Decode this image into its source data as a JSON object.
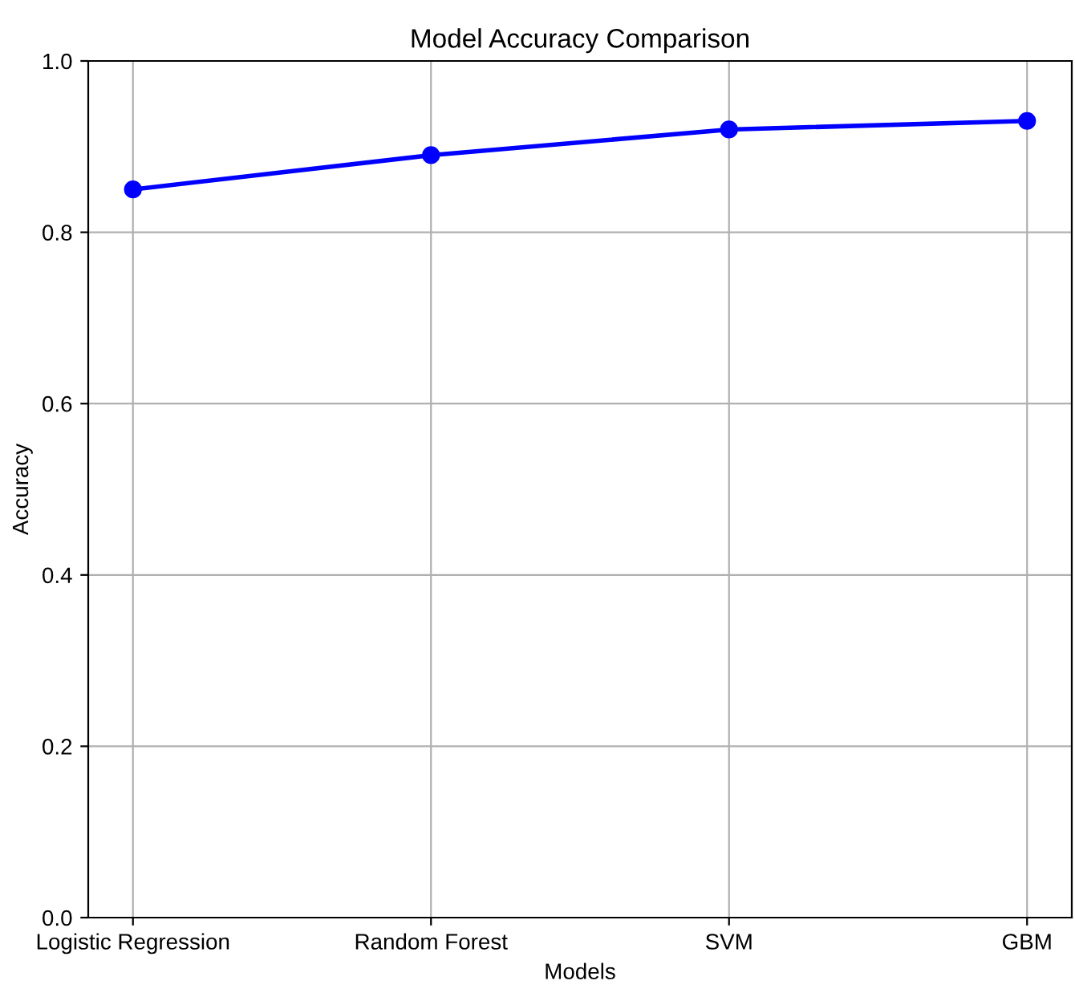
{
  "chart_data": {
    "type": "line",
    "title": "Model Accuracy Comparison",
    "xlabel": "Models",
    "ylabel": "Accuracy",
    "categories": [
      "Logistic Regression",
      "Random Forest",
      "SVM",
      "GBM"
    ],
    "series": [
      {
        "color": "#0000ff",
        "values": [
          0.85,
          0.89,
          0.92,
          0.93
        ]
      }
    ],
    "ylim": [
      0,
      1.0
    ],
    "yticks": [
      {
        "value": 0,
        "label": "0.0"
      },
      0.2,
      0.4,
      0.6,
      0.8,
      {
        "value": 1.0,
        "label": "1.0"
      }
    ],
    "grid": true,
    "marker": "circle",
    "line_style": "solid"
  }
}
